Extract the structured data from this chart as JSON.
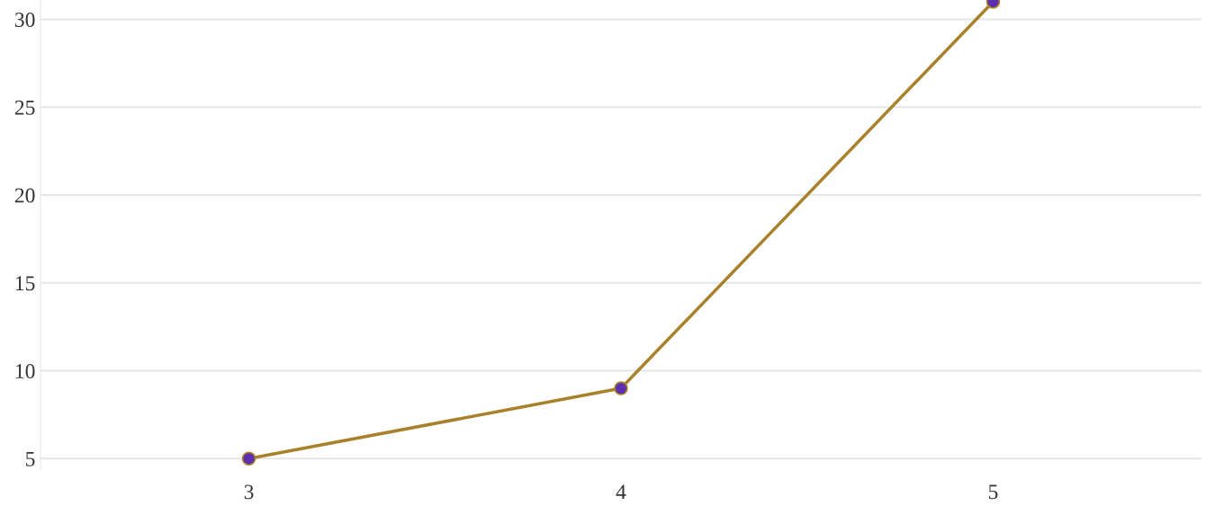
{
  "chart_data": {
    "type": "line",
    "x": [
      3,
      4,
      5
    ],
    "series": [
      {
        "color": "#a8822a",
        "values": [
          5,
          9,
          31
        ]
      }
    ],
    "xlim": [
      2.44,
      5.56
    ],
    "xticks": [
      3,
      4,
      5
    ],
    "ylim": [
      4.4,
      31.1
    ],
    "yticks": [
      5,
      10,
      15,
      20,
      25,
      30
    ],
    "grid": "y",
    "marker": "circle",
    "line_style": "solid"
  }
}
